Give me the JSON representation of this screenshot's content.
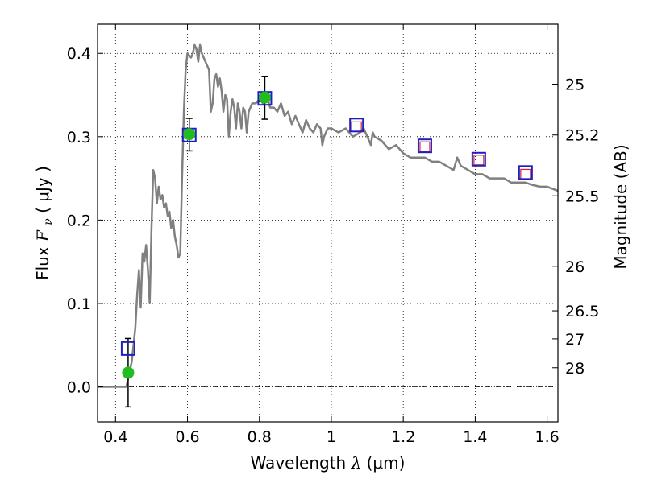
{
  "chart_data": {
    "type": "scatter",
    "xlabel": "Wavelength  λ (μm)",
    "xlabel_parts": {
      "text": "Wavelength  ",
      "symbol": "λ",
      "unit": " (μm)"
    },
    "ylabel": "Flux  Fν  ( μJy )",
    "ylabel_parts": {
      "text": "Flux  ",
      "symbol": "F",
      "sub": "ν",
      "unit": "  ( μJy )"
    },
    "y2label": "Magnitude (AB)",
    "xlim": [
      0.35,
      1.63
    ],
    "ylim": [
      -0.042,
      0.435
    ],
    "grid": true,
    "x_ticks": [
      {
        "value": 0.4,
        "label": "0.4"
      },
      {
        "value": 0.6,
        "label": "0.6"
      },
      {
        "value": 0.8,
        "label": "0.8"
      },
      {
        "value": 1.0,
        "label": "1"
      },
      {
        "value": 1.2,
        "label": "1.2"
      },
      {
        "value": 1.4,
        "label": "1.4"
      },
      {
        "value": 1.6,
        "label": "1.6"
      }
    ],
    "y_ticks": [
      {
        "value": 0.0,
        "label": "0.0"
      },
      {
        "value": 0.1,
        "label": "0.1"
      },
      {
        "value": 0.2,
        "label": "0.2"
      },
      {
        "value": 0.3,
        "label": "0.3"
      },
      {
        "value": 0.4,
        "label": "0.4"
      }
    ],
    "mag_ticks": [
      {
        "value": 25,
        "label": "25"
      },
      {
        "value": 25.2,
        "label": "25.2"
      },
      {
        "value": 25.5,
        "label": "25.5"
      },
      {
        "value": 26,
        "label": "26"
      },
      {
        "value": 26.5,
        "label": "26.5"
      },
      {
        "value": 27,
        "label": "27"
      },
      {
        "value": 28,
        "label": "28"
      }
    ],
    "zero_line": 0.0,
    "series": [
      {
        "name": "model-spectrum",
        "kind": "line",
        "color": "#808080",
        "points": [
          [
            0.35,
            0.0
          ],
          [
            0.4,
            0.0
          ],
          [
            0.43,
            0.0
          ],
          [
            0.445,
            0.03
          ],
          [
            0.455,
            0.07
          ],
          [
            0.46,
            0.11
          ],
          [
            0.465,
            0.14
          ],
          [
            0.47,
            0.095
          ],
          [
            0.475,
            0.16
          ],
          [
            0.48,
            0.15
          ],
          [
            0.485,
            0.17
          ],
          [
            0.49,
            0.14
          ],
          [
            0.495,
            0.1
          ],
          [
            0.5,
            0.19
          ],
          [
            0.505,
            0.26
          ],
          [
            0.51,
            0.25
          ],
          [
            0.515,
            0.22
          ],
          [
            0.52,
            0.24
          ],
          [
            0.525,
            0.225
          ],
          [
            0.53,
            0.23
          ],
          [
            0.535,
            0.215
          ],
          [
            0.54,
            0.22
          ],
          [
            0.545,
            0.205
          ],
          [
            0.55,
            0.21
          ],
          [
            0.555,
            0.19
          ],
          [
            0.56,
            0.2
          ],
          [
            0.565,
            0.18
          ],
          [
            0.57,
            0.17
          ],
          [
            0.575,
            0.155
          ],
          [
            0.58,
            0.16
          ],
          [
            0.585,
            0.25
          ],
          [
            0.59,
            0.33
          ],
          [
            0.595,
            0.38
          ],
          [
            0.6,
            0.4
          ],
          [
            0.61,
            0.395
          ],
          [
            0.615,
            0.4
          ],
          [
            0.62,
            0.41
          ],
          [
            0.625,
            0.405
          ],
          [
            0.63,
            0.39
          ],
          [
            0.635,
            0.41
          ],
          [
            0.64,
            0.4
          ],
          [
            0.645,
            0.395
          ],
          [
            0.65,
            0.39
          ],
          [
            0.655,
            0.385
          ],
          [
            0.66,
            0.38
          ],
          [
            0.665,
            0.33
          ],
          [
            0.67,
            0.34
          ],
          [
            0.675,
            0.37
          ],
          [
            0.68,
            0.375
          ],
          [
            0.685,
            0.36
          ],
          [
            0.69,
            0.37
          ],
          [
            0.695,
            0.355
          ],
          [
            0.7,
            0.33
          ],
          [
            0.705,
            0.35
          ],
          [
            0.71,
            0.345
          ],
          [
            0.715,
            0.3
          ],
          [
            0.72,
            0.33
          ],
          [
            0.725,
            0.345
          ],
          [
            0.73,
            0.335
          ],
          [
            0.735,
            0.31
          ],
          [
            0.74,
            0.34
          ],
          [
            0.745,
            0.33
          ],
          [
            0.75,
            0.31
          ],
          [
            0.755,
            0.335
          ],
          [
            0.76,
            0.33
          ],
          [
            0.765,
            0.305
          ],
          [
            0.77,
            0.33
          ],
          [
            0.775,
            0.335
          ],
          [
            0.78,
            0.34
          ],
          [
            0.79,
            0.34
          ],
          [
            0.8,
            0.345
          ],
          [
            0.81,
            0.34
          ],
          [
            0.82,
            0.35
          ],
          [
            0.83,
            0.335
          ],
          [
            0.84,
            0.335
          ],
          [
            0.85,
            0.33
          ],
          [
            0.86,
            0.34
          ],
          [
            0.87,
            0.325
          ],
          [
            0.88,
            0.33
          ],
          [
            0.89,
            0.315
          ],
          [
            0.9,
            0.325
          ],
          [
            0.91,
            0.315
          ],
          [
            0.92,
            0.305
          ],
          [
            0.93,
            0.32
          ],
          [
            0.94,
            0.31
          ],
          [
            0.95,
            0.305
          ],
          [
            0.96,
            0.315
          ],
          [
            0.97,
            0.31
          ],
          [
            0.975,
            0.29
          ],
          [
            0.98,
            0.3
          ],
          [
            0.99,
            0.31
          ],
          [
            1.0,
            0.31
          ],
          [
            1.02,
            0.305
          ],
          [
            1.04,
            0.31
          ],
          [
            1.06,
            0.3
          ],
          [
            1.08,
            0.305
          ],
          [
            1.09,
            0.31
          ],
          [
            1.1,
            0.3
          ],
          [
            1.11,
            0.29
          ],
          [
            1.115,
            0.305
          ],
          [
            1.12,
            0.3
          ],
          [
            1.14,
            0.295
          ],
          [
            1.16,
            0.285
          ],
          [
            1.18,
            0.29
          ],
          [
            1.2,
            0.28
          ],
          [
            1.22,
            0.275
          ],
          [
            1.24,
            0.275
          ],
          [
            1.26,
            0.275
          ],
          [
            1.28,
            0.27
          ],
          [
            1.3,
            0.27
          ],
          [
            1.32,
            0.265
          ],
          [
            1.34,
            0.26
          ],
          [
            1.35,
            0.275
          ],
          [
            1.36,
            0.265
          ],
          [
            1.38,
            0.26
          ],
          [
            1.4,
            0.255
          ],
          [
            1.42,
            0.255
          ],
          [
            1.44,
            0.25
          ],
          [
            1.46,
            0.25
          ],
          [
            1.48,
            0.25
          ],
          [
            1.5,
            0.245
          ],
          [
            1.52,
            0.245
          ],
          [
            1.54,
            0.245
          ],
          [
            1.56,
            0.242
          ],
          [
            1.58,
            0.24
          ],
          [
            1.6,
            0.24
          ],
          [
            1.63,
            0.235
          ]
        ]
      },
      {
        "name": "model-photometry",
        "kind": "open-square",
        "color": "#d81b3c",
        "points": [
          [
            1.07,
            0.312
          ],
          [
            1.26,
            0.288
          ],
          [
            1.41,
            0.272
          ],
          [
            1.54,
            0.255
          ]
        ]
      },
      {
        "name": "observed-photometry-boxes",
        "kind": "open-square",
        "color": "#1f1fbf",
        "points": [
          [
            0.435,
            0.046
          ],
          [
            0.605,
            0.302
          ],
          [
            0.815,
            0.346
          ],
          [
            1.07,
            0.314
          ],
          [
            1.26,
            0.289
          ],
          [
            1.41,
            0.273
          ],
          [
            1.54,
            0.257
          ]
        ]
      },
      {
        "name": "observed-detections",
        "kind": "filled-circle",
        "color": "#22bb22",
        "points": [
          [
            0.435,
            0.017
          ],
          [
            0.605,
            0.303
          ],
          [
            0.815,
            0.347
          ]
        ]
      }
    ],
    "error_bars": [
      {
        "x": 0.435,
        "low": -0.024,
        "high": 0.058
      },
      {
        "x": 0.605,
        "low": 0.283,
        "high": 0.322
      },
      {
        "x": 0.815,
        "low": 0.321,
        "high": 0.372
      }
    ]
  }
}
